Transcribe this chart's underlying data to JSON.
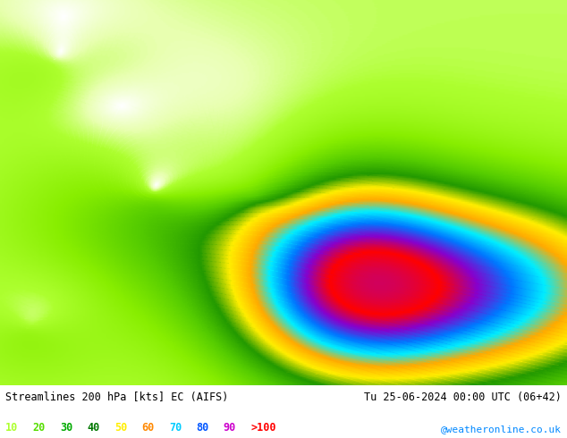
{
  "title_left": "Streamlines 200 hPa [kts] EC (AIFS)",
  "title_right": "Tu 25-06-2024 00:00 UTC (06+42)",
  "watermark": "@weatheronline.co.uk",
  "legend_values": [
    "10",
    "20",
    "30",
    "40",
    "50",
    "60",
    "70",
    "80",
    "90",
    ">100"
  ],
  "legend_colors": [
    "#adff2f",
    "#7fff00",
    "#00dd00",
    "#009900",
    "#ffcc00",
    "#ff8800",
    "#00ffff",
    "#0000ff",
    "#cc00cc",
    "#ff0000"
  ],
  "cmap_nodes": [
    [
      0,
      "#ffffff"
    ],
    [
      5,
      "#e8ffb0"
    ],
    [
      10,
      "#adff2f"
    ],
    [
      20,
      "#88ee00"
    ],
    [
      30,
      "#55cc00"
    ],
    [
      40,
      "#229900"
    ],
    [
      50,
      "#ffee00"
    ],
    [
      60,
      "#ffaa00"
    ],
    [
      70,
      "#00eeff"
    ],
    [
      80,
      "#0077ff"
    ],
    [
      90,
      "#8800cc"
    ],
    [
      100,
      "#ff0000"
    ],
    [
      110,
      "#cc0066"
    ]
  ],
  "background_color": "#c8ffb0",
  "fig_width": 6.34,
  "fig_height": 4.9,
  "dpi": 100
}
